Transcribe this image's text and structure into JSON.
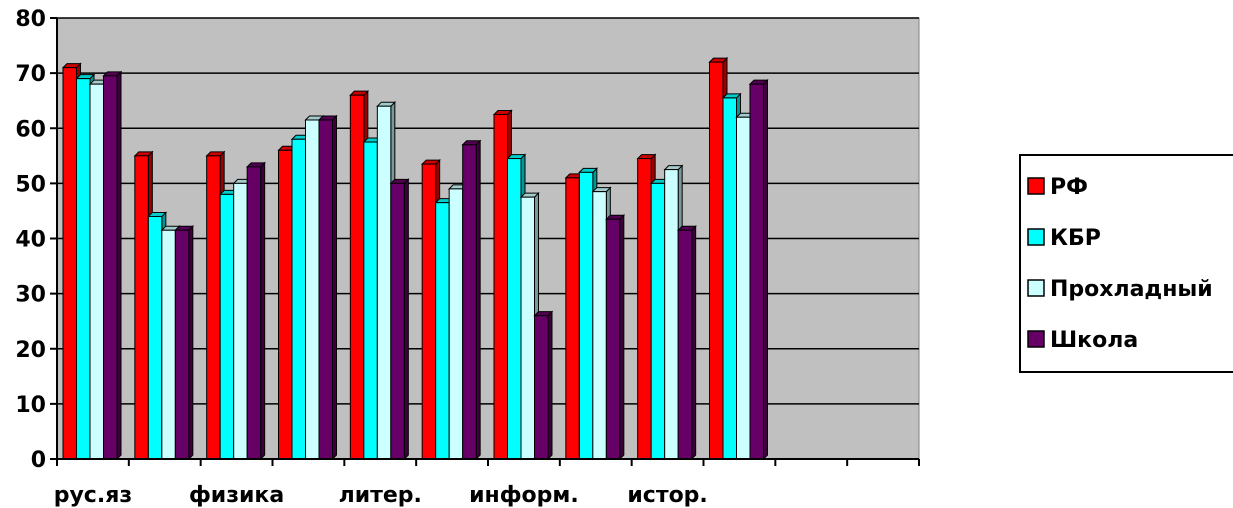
{
  "chart_data": {
    "type": "bar",
    "categories": [
      "рус.яз",
      "",
      "физика",
      "",
      "литер.",
      "",
      "информ.",
      "",
      "истор.",
      "",
      "",
      ""
    ],
    "series": [
      {
        "name": "РФ",
        "color": "#ff0000",
        "values": [
          71,
          55,
          55,
          56,
          66,
          53.5,
          62.5,
          51,
          54.5,
          72,
          null,
          null
        ]
      },
      {
        "name": "КБР",
        "color": "#00ffff",
        "values": [
          69,
          44,
          48,
          58,
          57.5,
          46.5,
          54.5,
          52,
          50,
          65.5,
          null,
          null
        ]
      },
      {
        "name": "Прохладный",
        "color": "#ccffff",
        "values": [
          68,
          41.5,
          50,
          61.5,
          64,
          49,
          47.5,
          48.5,
          52.5,
          62,
          null,
          null
        ]
      },
      {
        "name": "Школа",
        "color": "#660066",
        "values": [
          69.5,
          41.5,
          53,
          61.5,
          50,
          57,
          26,
          43.5,
          41.5,
          68,
          null,
          null
        ]
      }
    ],
    "ylim": [
      0,
      80
    ],
    "yticks": [
      "0",
      "10",
      "20",
      "30",
      "40",
      "50",
      "60",
      "70",
      "80"
    ],
    "grid": true,
    "plot_background": "#c0c0c0",
    "legend_position": "right",
    "title": "",
    "xlabel": "",
    "ylabel": ""
  }
}
